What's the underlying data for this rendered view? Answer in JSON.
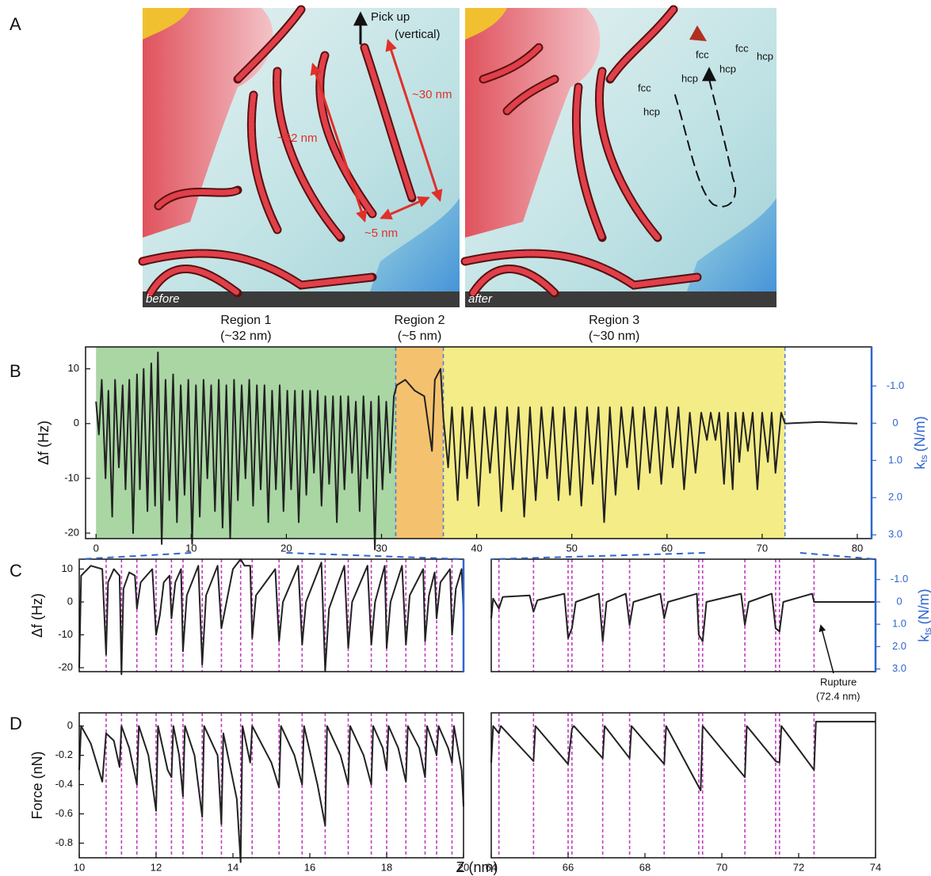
{
  "panel_labels": [
    "A",
    "B",
    "C",
    "D"
  ],
  "images": [
    {
      "caption": "before",
      "labels": [
        "Pick up",
        "(vertical)",
        "~30 nm",
        "~32 nm",
        "~5 nm"
      ]
    },
    {
      "caption": "after",
      "labels": [
        "fcc",
        "fcc",
        "fcc",
        "hcp",
        "hcp",
        "hcp",
        "hcp"
      ]
    }
  ],
  "shared_xlabel": "Z (nm)",
  "chart_data": [
    {
      "type": "line",
      "ylabel": "Δf (Hz)",
      "y2label": {
        "main": "k",
        "sub": "ts",
        "unit": "(N/m)"
      },
      "y2_color": "#2f66d0",
      "color": "#222222",
      "xlim": [
        -1.1,
        81.5
      ],
      "xticks": [
        0,
        10,
        20,
        30,
        40,
        50,
        60,
        70,
        80
      ],
      "ylim": [
        -21,
        14
      ],
      "yticks": [
        10,
        0,
        -10,
        -20
      ],
      "y2lim": [
        3.1,
        -2.05
      ],
      "y2ticks": [
        {
          "value": -1,
          "label": "-1.0"
        },
        0,
        {
          "value": 1,
          "label": "1.0"
        },
        {
          "value": 2,
          "label": "2.0"
        },
        {
          "value": 3,
          "label": "3.0"
        }
      ],
      "regions": [
        {
          "name": "Region 1",
          "span": "(~32 nm)",
          "x": [
            0,
            31.5
          ],
          "color": "#a9d6a3"
        },
        {
          "name": "Region 2",
          "span": "(~5 nm)",
          "x": [
            31.5,
            36.5
          ],
          "color": "#f4c26e"
        },
        {
          "name": "Region 3",
          "span": "(~30 nm)",
          "x": [
            36.5,
            72.4
          ],
          "color": "#f4ec86"
        }
      ],
      "x": [
        0,
        0.3,
        0.6,
        1,
        1.3,
        1.7,
        2,
        2.4,
        2.8,
        3.1,
        3.5,
        3.9,
        4.3,
        4.6,
        5,
        5.4,
        5.8,
        6.2,
        6.5,
        6.9,
        7.3,
        7.7,
        8.1,
        8.5,
        8.9,
        9.3,
        9.7,
        10.1,
        10.5,
        10.9,
        11.3,
        11.7,
        12.1,
        12.5,
        12.9,
        13.3,
        13.7,
        14.1,
        14.5,
        14.9,
        15.3,
        15.7,
        16.1,
        16.5,
        16.9,
        17.3,
        17.7,
        18.1,
        18.5,
        18.9,
        19.3,
        19.7,
        20.1,
        20.5,
        20.9,
        21.3,
        21.7,
        22.1,
        22.5,
        22.9,
        23.3,
        23.7,
        24.1,
        24.5,
        24.9,
        25.3,
        25.7,
        26.1,
        26.5,
        26.9,
        27.3,
        27.7,
        28.1,
        28.5,
        28.9,
        29.3,
        29.7,
        30.1,
        30.5,
        30.9,
        31.3,
        31.6,
        32.5,
        33.5,
        34.5,
        35.3,
        35.6,
        36.2,
        36.5,
        37,
        37.4,
        38,
        38.5,
        39,
        39.5,
        40.2,
        40.8,
        41.4,
        42,
        42.6,
        43.2,
        43.8,
        44.4,
        45,
        45.6,
        46.2,
        46.8,
        47.4,
        48,
        48.6,
        49.2,
        49.8,
        50.4,
        51,
        51.6,
        52.2,
        52.8,
        53.4,
        54,
        54.6,
        55.2,
        55.8,
        56.4,
        57,
        57.6,
        58.2,
        58.8,
        59.4,
        60,
        60.6,
        61.2,
        61.8,
        62.4,
        63,
        63.6,
        64.2,
        64.6,
        65.1,
        65.5,
        66,
        66.4,
        66.9,
        67.2,
        67.6,
        68,
        68.5,
        69,
        69.5,
        70,
        70.6,
        71,
        71.4,
        72,
        72.4,
        76,
        80
      ],
      "values": [
        4,
        -2,
        8,
        -10,
        6,
        -17,
        8,
        -8,
        7,
        -12,
        8,
        -20,
        9,
        -12,
        10,
        -16,
        11,
        -15,
        13,
        -22,
        8,
        -14,
        9,
        -18,
        7,
        -13,
        8,
        -22,
        7,
        -17,
        8,
        -10,
        7,
        -16,
        8,
        -19,
        7,
        -21,
        8,
        -14,
        7,
        -10,
        8,
        -15,
        7,
        -12,
        7,
        -18,
        6,
        -12,
        7,
        -16,
        6,
        -12,
        6,
        -18,
        6,
        -13,
        6,
        -9,
        6,
        -15,
        5,
        -11,
        5,
        -18,
        5,
        -12,
        5,
        -9,
        4,
        -16,
        5,
        -10,
        4,
        -23,
        5,
        -12,
        4,
        -9,
        5,
        7,
        8,
        6,
        5,
        -5,
        8,
        10,
        1,
        -8,
        3,
        -14,
        3,
        -10,
        3,
        -15,
        3,
        -9,
        3,
        -16,
        3,
        -12,
        3,
        -17,
        3,
        -14,
        3,
        -10,
        3,
        -14,
        3,
        -13,
        3,
        -15,
        3,
        -11,
        3,
        -18,
        3,
        -13,
        3,
        -8,
        3,
        -12,
        3,
        -9,
        3,
        -11,
        3,
        -8,
        3,
        -12,
        2,
        -9,
        2,
        -3,
        2,
        -3,
        2,
        -11,
        2,
        -12,
        2,
        -7,
        2,
        -5,
        2,
        -12,
        2,
        -7,
        2,
        -9,
        2,
        0,
        0.3,
        0
      ]
    },
    {
      "type": "line",
      "ylabel": "Δf (Hz)",
      "y2_color": "#2f66d0",
      "color": "#222222",
      "marker_color": "#c23bc2",
      "xlim": [
        10,
        20
      ],
      "ylim": [
        -21.2,
        13
      ],
      "yticks": [
        10,
        0,
        -10,
        -20
      ],
      "markers": [
        10.7,
        11.1,
        11.5,
        12.0,
        12.4,
        12.7,
        13.2,
        13.7,
        14.2,
        14.5,
        15.2,
        15.8,
        16.4,
        17.0,
        17.6,
        18.0,
        18.5,
        19.0,
        19.3,
        19.7
      ],
      "x": [
        10.0,
        10.05,
        10.3,
        10.6,
        10.7,
        10.75,
        10.9,
        11.05,
        11.1,
        11.15,
        11.3,
        11.45,
        11.5,
        11.6,
        11.9,
        12.0,
        12.1,
        12.2,
        12.35,
        12.4,
        12.5,
        12.65,
        12.7,
        12.8,
        13.1,
        13.2,
        13.3,
        13.6,
        13.7,
        14.0,
        14.2,
        14.3,
        14.45,
        14.5,
        14.6,
        15.1,
        15.2,
        15.3,
        15.7,
        15.8,
        15.9,
        16.3,
        16.4,
        16.5,
        16.9,
        17.0,
        17.1,
        17.5,
        17.6,
        17.7,
        17.95,
        18.0,
        18.1,
        18.4,
        18.5,
        18.6,
        18.95,
        19.0,
        19.1,
        19.25,
        19.3,
        19.4,
        19.65,
        19.7,
        19.8,
        19.95,
        20.0
      ],
      "values": [
        -20,
        8,
        11,
        10,
        -16,
        6,
        10,
        8,
        -22,
        4,
        9,
        8,
        -2,
        6,
        10,
        -10,
        -4,
        6,
        8,
        -5,
        6,
        10,
        -15,
        2,
        11,
        -19,
        2,
        11,
        -8,
        10,
        13,
        11,
        11,
        -11,
        2,
        10,
        -12,
        0,
        11,
        -13,
        0,
        12,
        -21,
        -2,
        11,
        -14,
        0,
        11,
        -13,
        0,
        11,
        -14,
        0,
        11,
        -13,
        2,
        10,
        -12,
        2,
        9,
        -5,
        6,
        10,
        -10,
        4,
        10,
        -3
      ]
    },
    {
      "type": "line",
      "y2label": {
        "main": "k",
        "sub": "ts",
        "unit": "(N/m)"
      },
      "y2_color": "#2f66d0",
      "color": "#222222",
      "marker_color": "#c23bc2",
      "xlim": [
        64,
        74
      ],
      "ylim": [
        -21.2,
        13
      ],
      "y2lim": [
        3.12,
        -1.91
      ],
      "y2ticks": [
        {
          "value": -1,
          "label": "-1.0"
        },
        0,
        {
          "value": 1,
          "label": "1.0"
        },
        {
          "value": 2,
          "label": "2.0"
        },
        {
          "value": 3,
          "label": "3.0"
        }
      ],
      "markers": [
        64.2,
        65.1,
        66.0,
        66.1,
        66.9,
        67.6,
        68.5,
        69.4,
        69.5,
        70.6,
        71.4,
        71.5,
        72.4
      ],
      "annotation": [
        "Rupture",
        "(72.4 nm)"
      ],
      "x": [
        64.0,
        64.05,
        64.2,
        64.3,
        65.0,
        65.1,
        65.2,
        65.9,
        66.0,
        66.1,
        66.2,
        66.8,
        66.9,
        67.0,
        67.5,
        67.6,
        67.7,
        68.4,
        68.5,
        68.6,
        69.35,
        69.4,
        69.5,
        69.6,
        70.5,
        70.6,
        70.7,
        71.3,
        71.4,
        71.5,
        71.6,
        72.35,
        72.4,
        73,
        74
      ],
      "values": [
        -5,
        1,
        -2,
        1.5,
        2,
        -3,
        0.5,
        2.5,
        -11,
        -8,
        0,
        2.5,
        -12,
        0,
        2.5,
        -7,
        0,
        2.5,
        -5,
        0,
        2.5,
        -10,
        -12,
        0,
        2.5,
        -7,
        0,
        2.5,
        -8,
        -9,
        0,
        2.5,
        0,
        0,
        0
      ]
    },
    {
      "type": "line",
      "ylabel": "Force (nN)",
      "color": "#222222",
      "marker_color": "#c23bc2",
      "xlim": [
        10,
        20
      ],
      "xticks": [
        10,
        12,
        14,
        16,
        18,
        20
      ],
      "ylim": [
        -0.9,
        0.09
      ],
      "yticks": [
        0,
        -0.2,
        -0.4,
        -0.6,
        -0.8
      ],
      "markers": [
        10.7,
        11.1,
        11.5,
        12.0,
        12.4,
        12.7,
        13.2,
        13.7,
        14.2,
        14.5,
        15.2,
        15.8,
        16.4,
        17.0,
        17.6,
        18.0,
        18.5,
        19.0,
        19.3,
        19.7
      ],
      "x": [
        10.0,
        10.05,
        10.3,
        10.6,
        10.7,
        10.9,
        11.05,
        11.1,
        11.3,
        11.5,
        11.55,
        11.8,
        12.0,
        12.05,
        12.3,
        12.4,
        12.45,
        12.6,
        12.7,
        12.75,
        13.0,
        13.2,
        13.25,
        13.6,
        13.7,
        13.75,
        14.1,
        14.2,
        14.25,
        14.45,
        14.5,
        15.0,
        15.2,
        15.25,
        15.6,
        15.8,
        15.85,
        16.2,
        16.4,
        16.45,
        16.8,
        17.0,
        17.05,
        17.4,
        17.6,
        17.65,
        17.9,
        18.0,
        18.05,
        18.3,
        18.5,
        18.55,
        18.85,
        19.0,
        19.05,
        19.25,
        19.3,
        19.35,
        19.6,
        19.7,
        19.75,
        19.95,
        20.0
      ],
      "values": [
        -0.3,
        0,
        -0.12,
        -0.38,
        -0.05,
        -0.1,
        -0.28,
        0,
        -0.15,
        -0.4,
        0,
        -0.2,
        -0.58,
        0,
        -0.3,
        -0.35,
        0,
        -0.2,
        -0.48,
        0,
        -0.2,
        -0.62,
        0,
        -0.2,
        -0.67,
        -0.05,
        -0.5,
        -0.93,
        0,
        -0.25,
        0,
        -0.25,
        -0.42,
        0,
        -0.2,
        -0.4,
        0,
        -0.4,
        -0.68,
        0,
        -0.2,
        -0.4,
        0,
        -0.2,
        -0.4,
        0,
        -0.15,
        -0.3,
        0,
        -0.15,
        -0.38,
        0,
        -0.15,
        -0.35,
        0,
        -0.15,
        -0.2,
        0,
        -0.15,
        -0.25,
        0,
        -0.3,
        -0.55
      ]
    },
    {
      "type": "line",
      "color": "#222222",
      "marker_color": "#c23bc2",
      "xlim": [
        64,
        74
      ],
      "xticks": [
        64,
        66,
        68,
        70,
        72,
        74
      ],
      "ylim": [
        -0.9,
        0.09
      ],
      "markers": [
        64.2,
        65.1,
        66.0,
        66.1,
        66.9,
        67.6,
        68.5,
        69.4,
        69.5,
        70.6,
        71.4,
        71.5,
        72.4
      ],
      "x": [
        64.0,
        64.05,
        64.2,
        64.25,
        65.1,
        65.15,
        66.0,
        66.1,
        66.15,
        66.9,
        66.95,
        67.6,
        67.65,
        68.5,
        68.55,
        69.45,
        69.5,
        70.6,
        70.65,
        71.4,
        71.5,
        71.55,
        72.4,
        72.45,
        74
      ],
      "values": [
        -0.25,
        0,
        -0.05,
        0,
        -0.24,
        0,
        -0.26,
        -0.02,
        0,
        -0.22,
        0,
        -0.22,
        0,
        -0.26,
        0,
        -0.44,
        0,
        -0.35,
        0,
        -0.24,
        -0.25,
        0,
        -0.3,
        0.03,
        0.03
      ]
    }
  ]
}
